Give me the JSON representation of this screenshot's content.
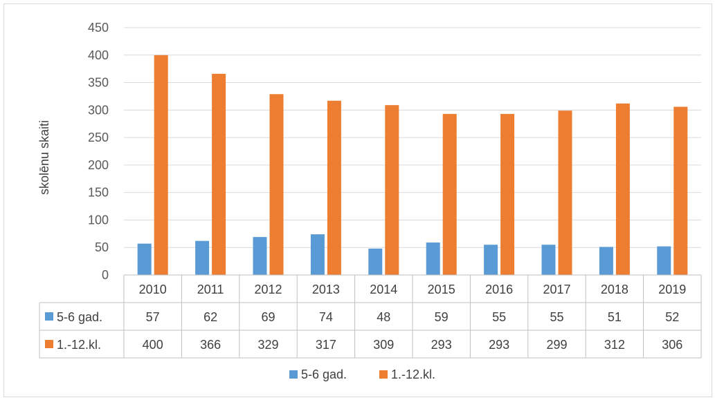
{
  "chart_data": {
    "type": "bar",
    "ylabel": "skolēnu skaiti",
    "ylim": [
      0,
      450
    ],
    "yticks": [
      0,
      50,
      100,
      150,
      200,
      250,
      300,
      350,
      400,
      450
    ],
    "grid": true,
    "legend": "bottom",
    "data_table": true,
    "categories": [
      "2010",
      "2011",
      "2012",
      "2013",
      "2014",
      "2015",
      "2016",
      "2017",
      "2018",
      "2019"
    ],
    "series": [
      {
        "name": "5-6 gad.",
        "color": "#5b9bd5",
        "values": [
          57,
          62,
          69,
          74,
          48,
          59,
          55,
          55,
          51,
          52
        ]
      },
      {
        "name": "1.-12.kl.",
        "color": "#ed7d31",
        "values": [
          400,
          366,
          329,
          317,
          309,
          293,
          293,
          299,
          312,
          306
        ]
      }
    ]
  }
}
